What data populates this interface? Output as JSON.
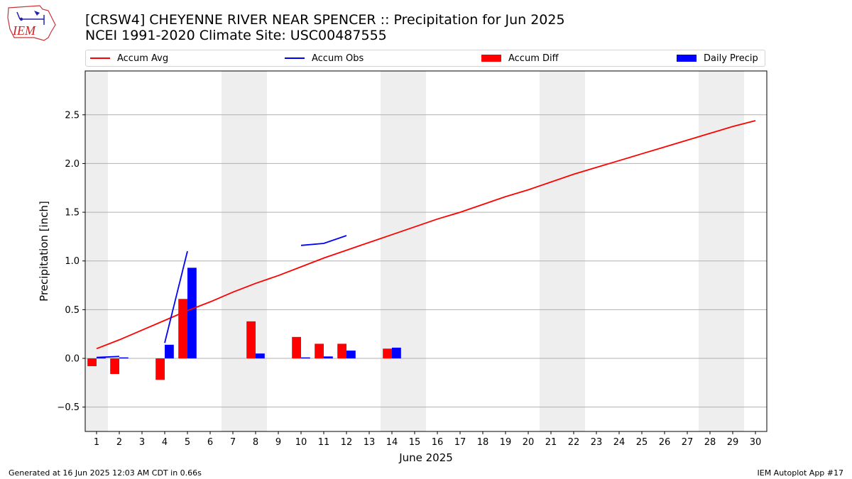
{
  "header": {
    "title_line1": "[CRSW4] CHEYENNE RIVER NEAR SPENCER :: Precipitation for Jun 2025",
    "title_line2": "NCEI 1991-2020 Climate Site: USC00487555",
    "logo_text": "IEM"
  },
  "footer": {
    "generated": "Generated at 16 Jun 2025 12:03 AM CDT in 0.66s",
    "app": "IEM Autoplot App #17"
  },
  "colors": {
    "avg": "#ff0000",
    "obs": "#0000ff",
    "diff": "#ff0000",
    "daily": "#0000ff",
    "weekend": "#eeeeee",
    "grid": "#b0b0b0"
  },
  "chart_data": {
    "type": "bar",
    "xlabel": "June 2025",
    "ylabel": "Precipitation [inch]",
    "xlim": [
      0.5,
      30.5
    ],
    "ylim": [
      -0.75,
      2.95
    ],
    "yticks": [
      -0.5,
      0.0,
      0.5,
      1.0,
      1.5,
      2.0,
      2.5
    ],
    "ytick_labels": [
      "−0.5",
      "0.0",
      "0.5",
      "1.0",
      "1.5",
      "2.0",
      "2.5"
    ],
    "x": [
      1,
      2,
      3,
      4,
      5,
      6,
      7,
      8,
      9,
      10,
      11,
      12,
      13,
      14,
      15,
      16,
      17,
      18,
      19,
      20,
      21,
      22,
      23,
      24,
      25,
      26,
      27,
      28,
      29,
      30
    ],
    "weekend_bands": [
      [
        0.5,
        1.5
      ],
      [
        6.5,
        8.5
      ],
      [
        13.5,
        15.5
      ],
      [
        20.5,
        22.5
      ],
      [
        27.5,
        29.5
      ]
    ],
    "grid": "horizontal",
    "legend_placement": "top",
    "series": [
      {
        "name": "Accum Avg",
        "kind": "line",
        "values": [
          0.1,
          0.19,
          0.29,
          0.39,
          0.49,
          0.58,
          0.68,
          0.77,
          0.85,
          0.94,
          1.03,
          1.11,
          1.19,
          1.27,
          1.35,
          1.43,
          1.5,
          1.58,
          1.66,
          1.73,
          1.81,
          1.89,
          1.96,
          2.03,
          2.1,
          2.17,
          2.24,
          2.31,
          2.38,
          2.44
        ]
      },
      {
        "name": "Accum Obs",
        "kind": "line",
        "values": [
          0.01,
          0.02,
          null,
          0.16,
          1.1,
          null,
          null,
          null,
          null,
          1.16,
          1.18,
          1.26,
          null,
          null,
          null,
          null,
          null,
          null,
          null,
          null,
          null,
          null,
          null,
          null,
          null,
          null,
          null,
          null,
          null,
          null
        ]
      },
      {
        "name": "Accum Diff",
        "kind": "bar",
        "values": [
          -0.08,
          -0.16,
          null,
          -0.22,
          0.61,
          null,
          null,
          0.38,
          null,
          0.22,
          0.15,
          0.15,
          null,
          0.1,
          null,
          null,
          null,
          null,
          null,
          null,
          null,
          null,
          null,
          null,
          null,
          null,
          null,
          null,
          null,
          null
        ]
      },
      {
        "name": "Daily Precip",
        "kind": "bar",
        "values": [
          0.01,
          0.01,
          null,
          0.14,
          0.93,
          null,
          null,
          0.05,
          null,
          0.01,
          0.02,
          0.08,
          null,
          0.11,
          null,
          null,
          null,
          null,
          null,
          null,
          null,
          null,
          null,
          null,
          null,
          null,
          null,
          null,
          null,
          null
        ]
      }
    ]
  }
}
